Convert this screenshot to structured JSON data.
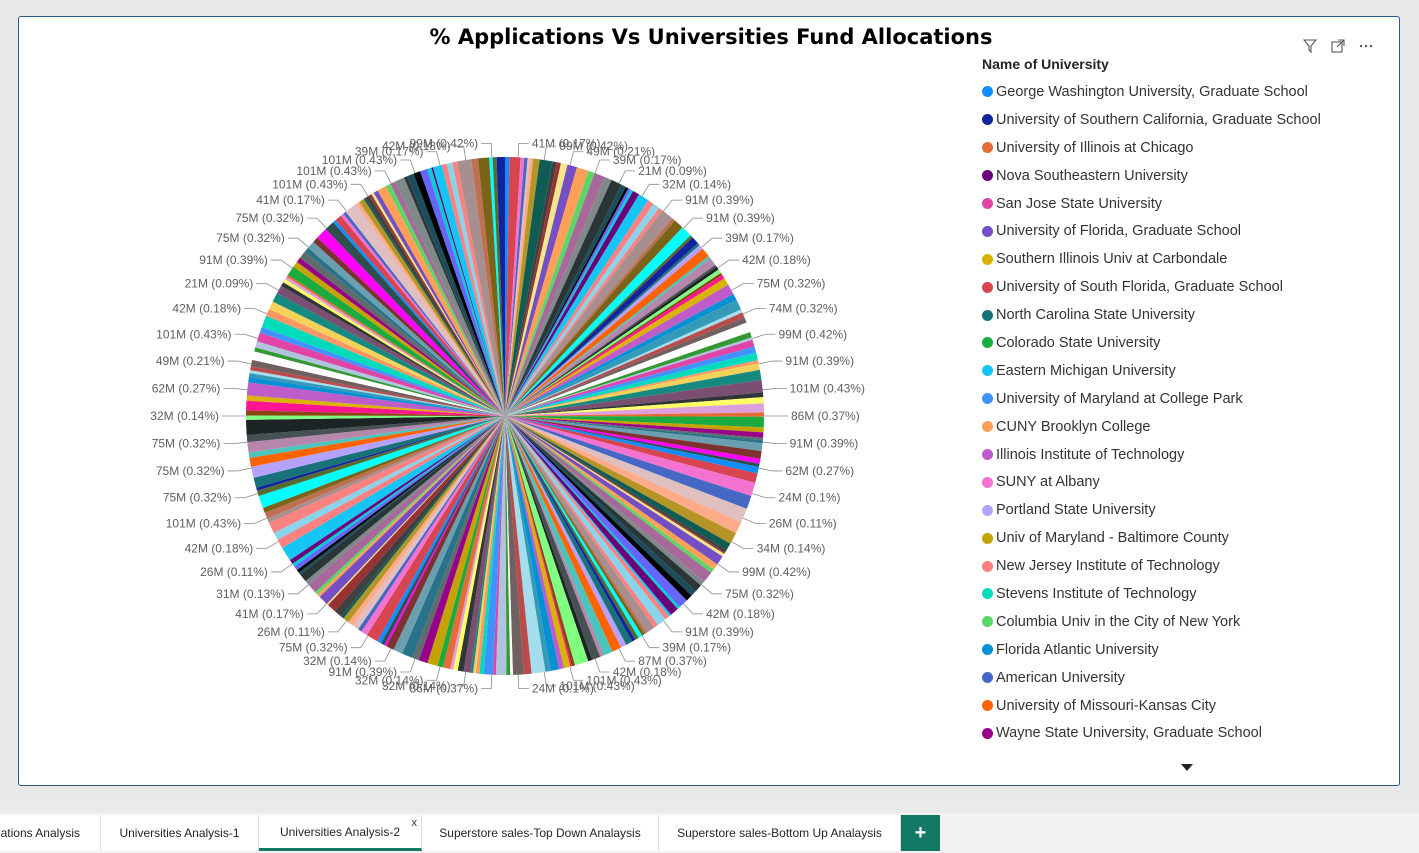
{
  "visual": {
    "title": "% Applications Vs Universities Fund Allocations",
    "icons": [
      "filter-icon",
      "focus-mode-icon",
      "more-options-icon"
    ]
  },
  "legend": {
    "title": "Name of University",
    "items": [
      {
        "label": "George Washington University, Graduate School",
        "color": "#118dff"
      },
      {
        "label": "University of Southern California, Graduate School",
        "color": "#12239e"
      },
      {
        "label": "University of Illinois at Chicago",
        "color": "#e66c37"
      },
      {
        "label": "Nova Southeastern University",
        "color": "#6b007b"
      },
      {
        "label": "San Jose State University",
        "color": "#e044a7"
      },
      {
        "label": "University of Florida, Graduate School",
        "color": "#744ec2"
      },
      {
        "label": "Southern Illinois Univ at Carbondale",
        "color": "#d9b300"
      },
      {
        "label": "University of South Florida, Graduate School",
        "color": "#d64550"
      },
      {
        "label": "North Carolina State University",
        "color": "#197278"
      },
      {
        "label": "Colorado State University",
        "color": "#1aab40"
      },
      {
        "label": "Eastern Michigan University",
        "color": "#15c6f4"
      },
      {
        "label": "University of Maryland at College Park",
        "color": "#4092ff"
      },
      {
        "label": "CUNY Brooklyn College",
        "color": "#ffa058"
      },
      {
        "label": "Illinois Institute of Technology",
        "color": "#be5dc9"
      },
      {
        "label": "SUNY at Albany",
        "color": "#f472d0"
      },
      {
        "label": "Portland State University",
        "color": "#b5a1ff"
      },
      {
        "label": "Univ of Maryland - Baltimore County",
        "color": "#c4a200"
      },
      {
        "label": "New Jersey Institute of Technology",
        "color": "#ff8080"
      },
      {
        "label": "Stevens Institute of Technology",
        "color": "#00dbbc"
      },
      {
        "label": "Columbia Univ in the City of New York",
        "color": "#5bd667"
      },
      {
        "label": "Florida Atlantic University",
        "color": "#0091d5"
      },
      {
        "label": "American University",
        "color": "#4668c5"
      },
      {
        "label": "University of Missouri-Kansas City",
        "color": "#ff6300"
      },
      {
        "label": "Wayne State University, Graduate School",
        "color": "#99008a"
      }
    ]
  },
  "chart_data": {
    "type": "pie",
    "title": "% Applications Vs Universities Fund Allocations",
    "legend_title": "Name of University",
    "legend_position": "right",
    "labeled_slices": [
      "41M (0.17%)",
      "99M (0.42%)",
      "49M (0.21%)",
      "39M (0.17%)",
      "21M (0.09%)",
      "32M (0.14%)",
      "91M (0.39%)",
      "91M (0.39%)",
      "39M (0.17%)",
      "42M (0.18%)",
      "75M (0.32%)",
      "74M (0.32%)",
      "99M (0.42%)",
      "91M (0.39%)",
      "101M (0.43%)",
      "86M (0.37%)",
      "91M (0.39%)",
      "62M (0.27%)",
      "24M (0.1%)",
      "26M (0.11%)",
      "34M (0.14%)",
      "99M (0.42%)",
      "75M (0.32%)",
      "42M (0.18%)",
      "91M (0.39%)",
      "39M (0.17%)",
      "87M (0.37%)",
      "42M (0.18%)",
      "101M (0.43%)",
      "101M (0.43%)",
      "24M (0.1%)",
      "86M (0.37%)",
      "32M (0.14%)",
      "32M (0.14%)",
      "91M (0.39%)",
      "32M (0.14%)",
      "75M (0.32%)",
      "26M (0.11%)",
      "41M (0.17%)",
      "31M (0.13%)",
      "26M (0.11%)",
      "42M (0.18%)",
      "101M (0.43%)",
      "75M (0.32%)",
      "75M (0.32%)",
      "75M (0.32%)",
      "32M (0.14%)",
      "62M (0.27%)",
      "49M (0.21%)",
      "101M (0.43%)",
      "42M (0.18%)",
      "21M (0.09%)",
      "91M (0.39%)",
      "75M (0.32%)",
      "75M (0.32%)",
      "41M (0.17%)",
      "101M (0.43%)",
      "101M (0.43%)",
      "101M (0.43%)",
      "39M (0.17%)",
      "42M (0.18%)",
      "99M (0.42%)"
    ],
    "values_millions": [
      41,
      99,
      49,
      39,
      21,
      32,
      91,
      91,
      39,
      42,
      75,
      74,
      99,
      91,
      101,
      86,
      91,
      62,
      24,
      26,
      34,
      99,
      75,
      42,
      91,
      39,
      87,
      42,
      101,
      101,
      24,
      86,
      32,
      32,
      91,
      32,
      75,
      26,
      41,
      31,
      26,
      42,
      101,
      75,
      75,
      75,
      32,
      62,
      49,
      101,
      42,
      21,
      91,
      75,
      75,
      41,
      101,
      101,
      101,
      39,
      42,
      99
    ]
  },
  "tabs": [
    {
      "label": "cations Analysis"
    },
    {
      "label": "Universities Analysis-1"
    },
    {
      "label": "Universities Analysis-2",
      "close": "x"
    },
    {
      "label": "Superstore sales-Top Down Analaysis"
    },
    {
      "label": "Superstore sales-Bottom Up Analaysis"
    }
  ],
  "add_tab_label": "+"
}
